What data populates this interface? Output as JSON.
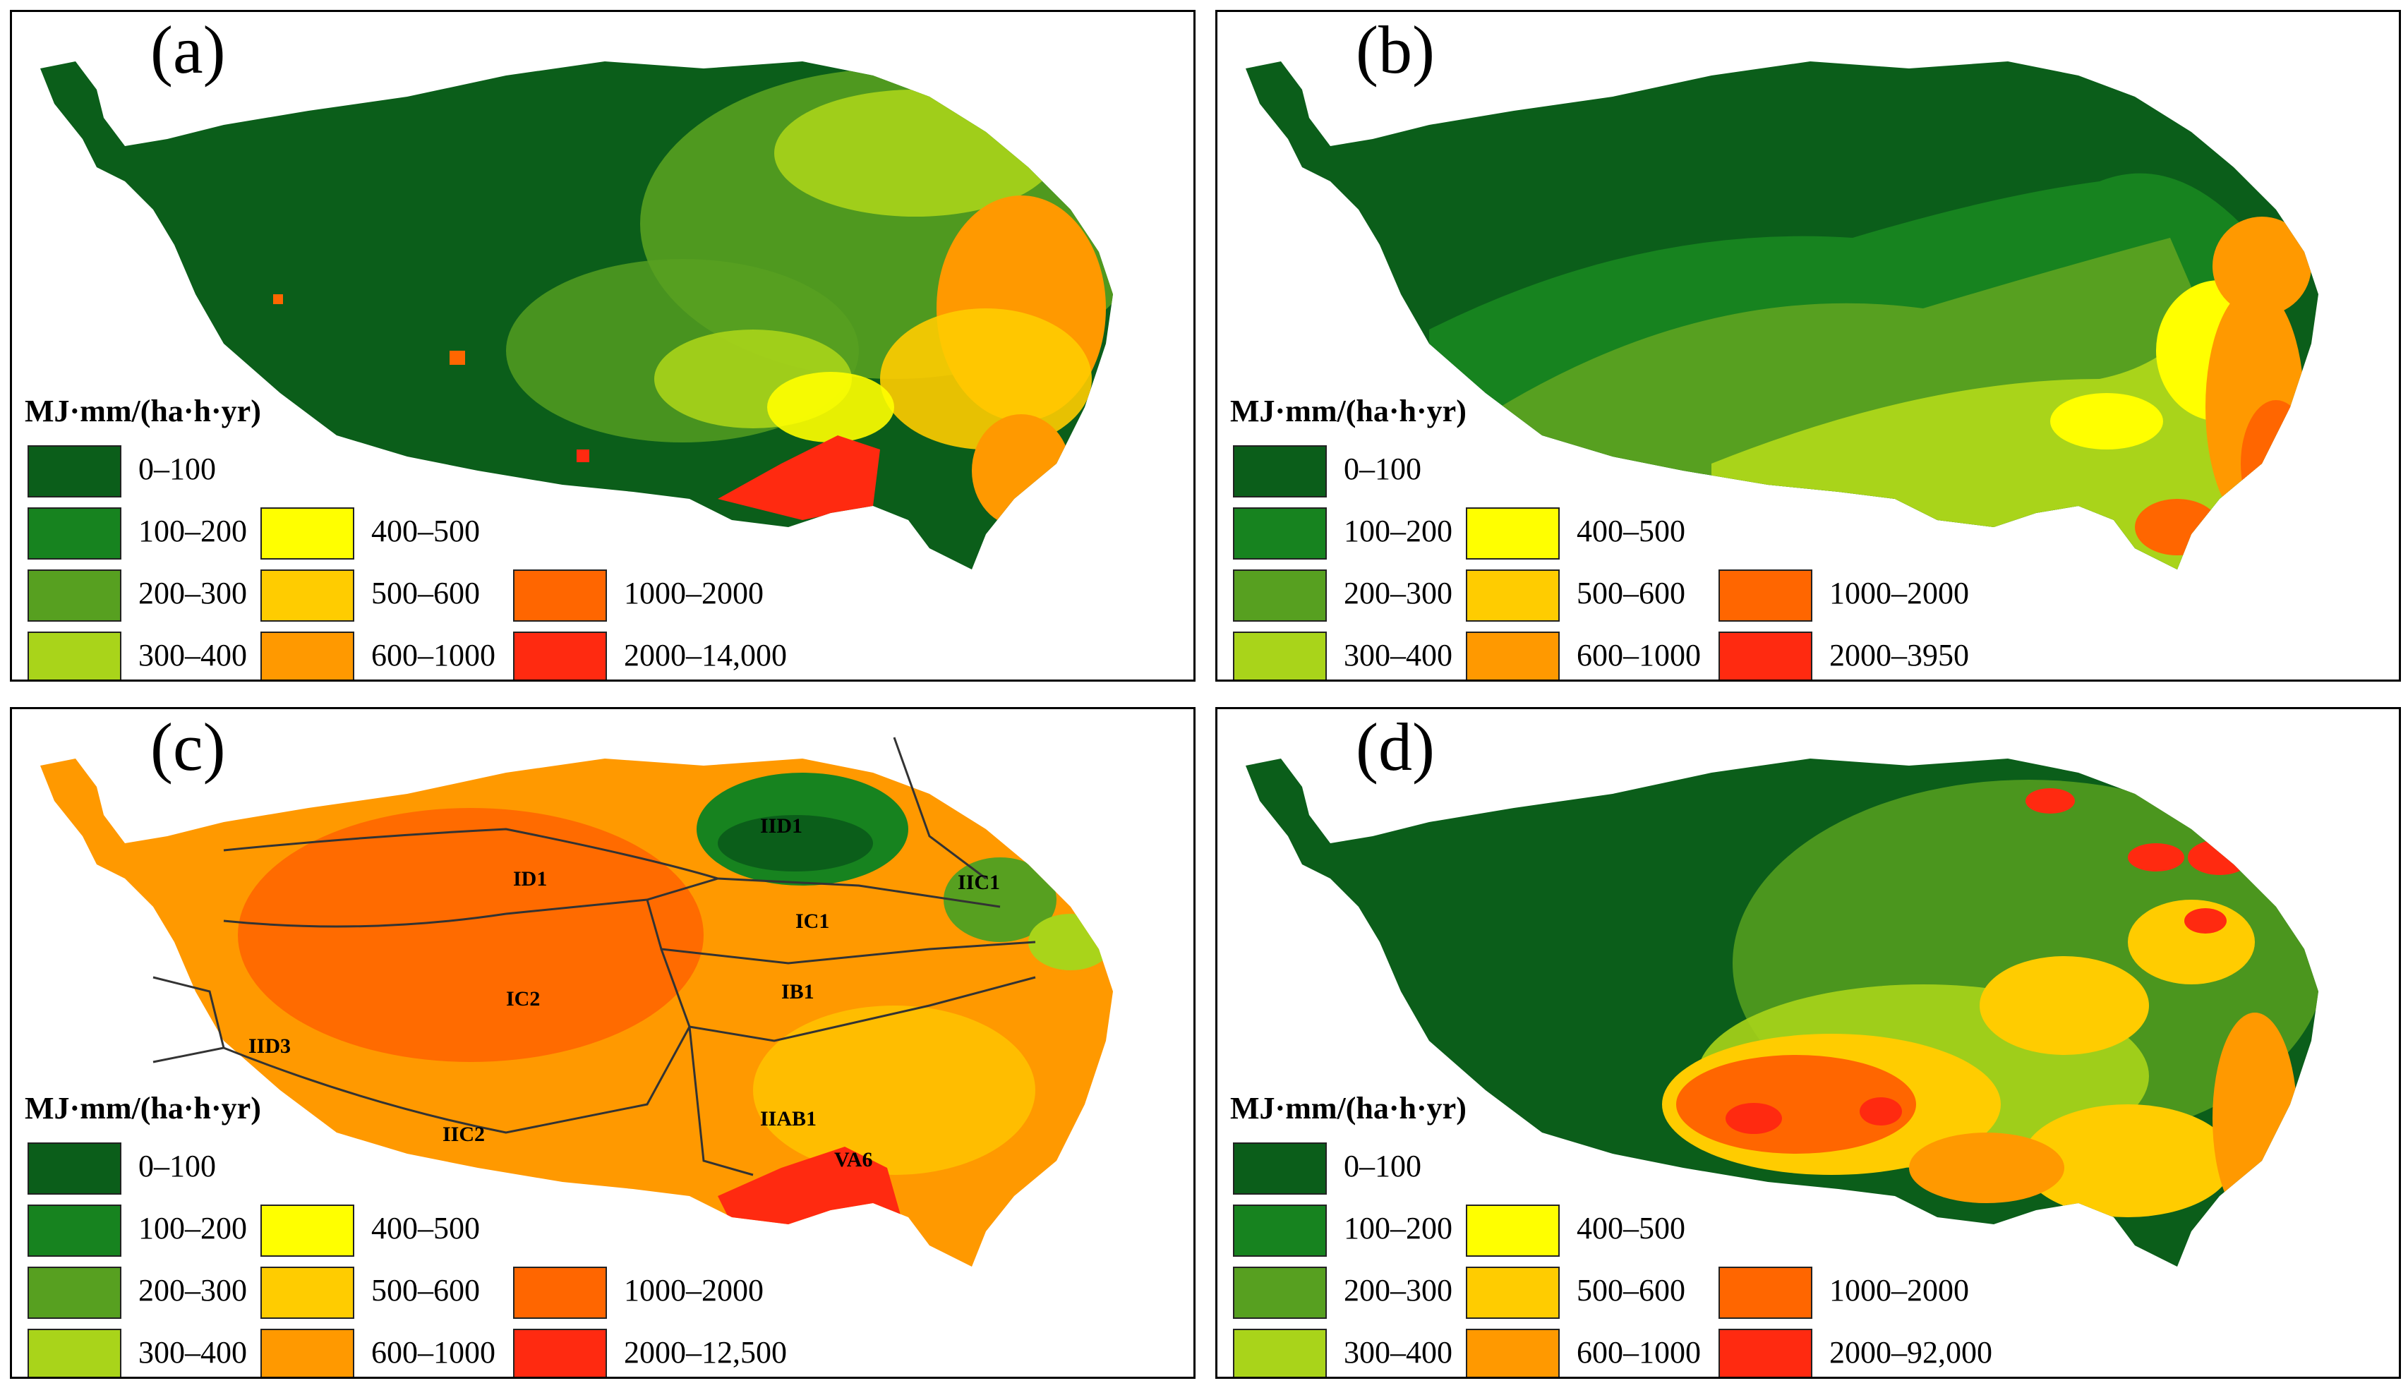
{
  "legend_title": "MJ·mm/(ha·h·yr)",
  "legend_colors": {
    "0-100": "#0b5e1a",
    "100-200": "#17831f",
    "200-300": "#57a020",
    "300-400": "#a9d41a",
    "400-500": "#ffff00",
    "500-600": "#ffcc00",
    "600-1000": "#ff9900",
    "1000-2000": "#ff6600",
    "2000+": "#ff2a10"
  },
  "panels": [
    {
      "label": "(a)",
      "legend": [
        "0–100",
        "100–200",
        "200–300",
        "300–400",
        "400–500",
        "500–600",
        "600–1000",
        "1000–2000",
        "2000–14,000"
      ]
    },
    {
      "label": "(b)",
      "legend": [
        "0–100",
        "100–200",
        "200–300",
        "300–400",
        "400–500",
        "500–600",
        "600–1000",
        "1000–2000",
        "2000–3950"
      ]
    },
    {
      "label": "(c)",
      "legend": [
        "0–100",
        "100–200",
        "200–300",
        "300–400",
        "400–500",
        "500–600",
        "600–1000",
        "1000–2000",
        "2000–12,500"
      ],
      "regions": [
        "IID1",
        "ID1",
        "IIC1",
        "IC1",
        "IC2",
        "IB1",
        "IID3",
        "IIAB1",
        "IIC2",
        "VA6"
      ]
    },
    {
      "label": "(d)",
      "legend": [
        "0–100",
        "100–200",
        "200–300",
        "300–400",
        "400–500",
        "500–600",
        "600–1000",
        "1000–2000",
        "2000–92,000"
      ]
    }
  ]
}
